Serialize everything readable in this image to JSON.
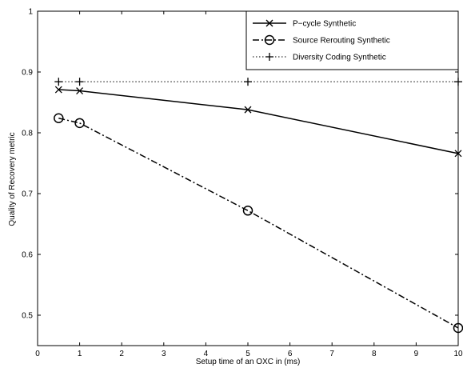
{
  "chart_data": {
    "type": "line",
    "xlabel": "Setup time of an OXC in (ms)",
    "ylabel": "Quality of Recovery metric",
    "xlim": [
      0,
      10
    ],
    "ylim": [
      0.45,
      1.0
    ],
    "xticks": [
      0,
      1,
      2,
      3,
      4,
      5,
      6,
      7,
      8,
      9,
      10
    ],
    "yticks": [
      0.5,
      0.6,
      0.7,
      0.8,
      0.9,
      1.0
    ],
    "xtick_labels": [
      "0",
      "1",
      "2",
      "3",
      "4",
      "5",
      "6",
      "7",
      "8",
      "9",
      "10"
    ],
    "ytick_labels": [
      "0.5",
      "0.6",
      "0.7",
      "0.8",
      "0.9",
      "1"
    ],
    "grid": false,
    "legend_position": "top-right",
    "series": [
      {
        "name": "P−cycle Synthetic",
        "line_style": "solid",
        "marker": "x",
        "color": "#000000",
        "x": [
          0.5,
          1,
          5,
          10
        ],
        "y": [
          0.871,
          0.869,
          0.838,
          0.766
        ]
      },
      {
        "name": "Source Rerouting Synthetic",
        "line_style": "dashdot",
        "marker": "o",
        "color": "#000000",
        "x": [
          0.5,
          1,
          5,
          10
        ],
        "y": [
          0.824,
          0.816,
          0.672,
          0.479
        ]
      },
      {
        "name": "Diversity Coding Synthetic",
        "line_style": "dotted",
        "marker": "+",
        "color": "#000000",
        "x": [
          0.5,
          1,
          5,
          10
        ],
        "y": [
          0.884,
          0.884,
          0.884,
          0.884
        ]
      }
    ]
  }
}
